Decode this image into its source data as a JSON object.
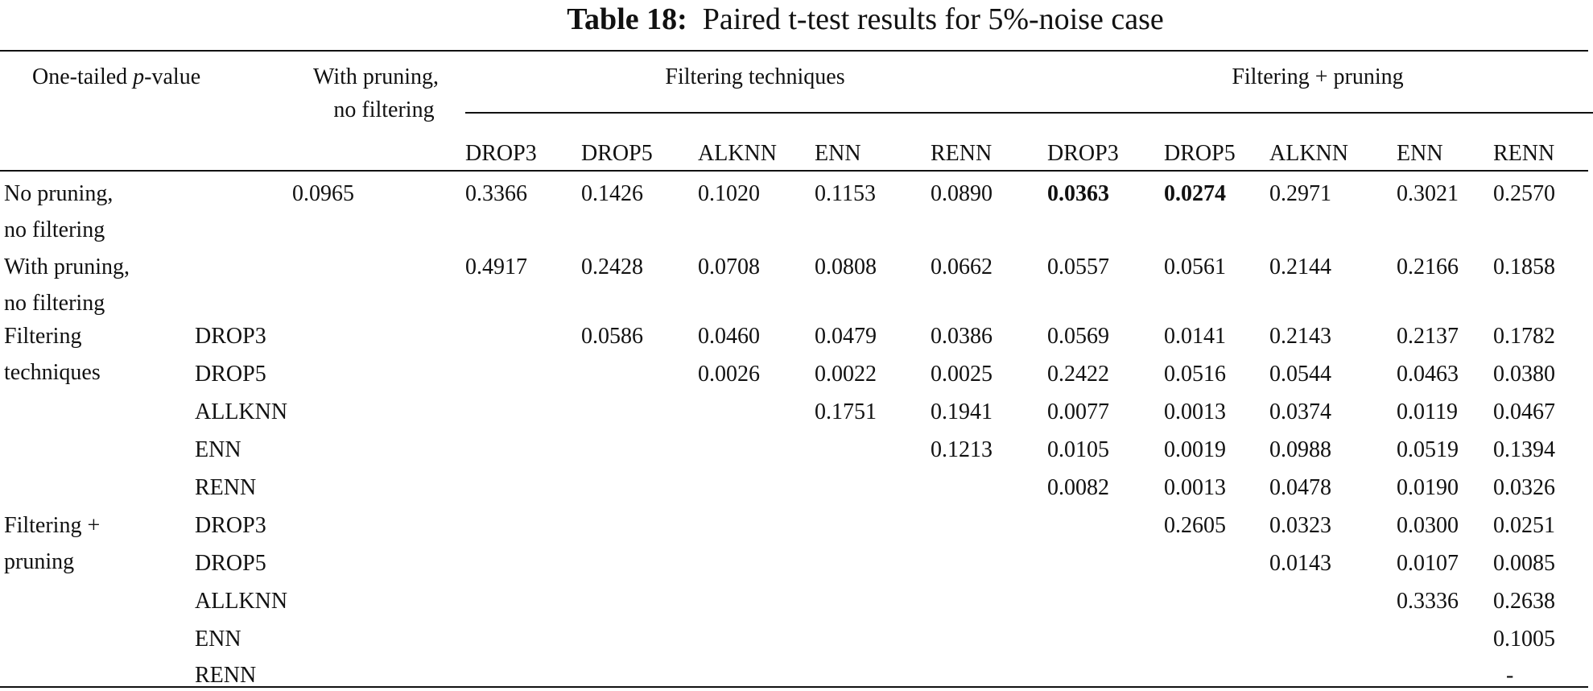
{
  "title": {
    "label": "Table 18:",
    "text": "Paired t-test results for 5%-noise case"
  },
  "header": {
    "corner": {
      "pre": "One-tailed ",
      "p": "p",
      "post": "-value"
    },
    "with_pruning": [
      "With pruning,",
      "no filtering"
    ],
    "group_filtering": "Filtering techniques",
    "group_filtering_pruning": "Filtering + pruning",
    "filtering_columns": [
      "DROP3",
      "DROP5",
      "ALKNN",
      "ENN",
      "RENN"
    ],
    "filtering_pruning_columns": [
      "DROP3",
      "DROP5",
      "ALKNN",
      "ENN",
      "RENN"
    ]
  },
  "rows": [
    {
      "label": [
        "No pruning,",
        "no filtering"
      ],
      "sub": "",
      "with_pruning": "0.0965",
      "values": [
        "0.3366",
        "0.1426",
        "0.1020",
        "0.1153",
        "0.0890",
        "0.0363",
        "0.0274",
        "0.2971",
        "0.3021",
        "0.2570"
      ],
      "bold": [
        5,
        6
      ]
    },
    {
      "label": [
        "With pruning,",
        "no filtering"
      ],
      "sub": "",
      "with_pruning": "",
      "values": [
        "0.4917",
        "0.2428",
        "0.0708",
        "0.0808",
        "0.0662",
        "0.0557",
        "0.0561",
        "0.2144",
        "0.2166",
        "0.1858"
      ],
      "bold": []
    },
    {
      "label": [
        "Filtering",
        "techniques"
      ],
      "sub": "DROP3",
      "with_pruning": "",
      "values": [
        "",
        "0.0586",
        "0.0460",
        "0.0479",
        "0.0386",
        "0.0569",
        "0.0141",
        "0.2143",
        "0.2137",
        "0.1782"
      ],
      "bold": []
    },
    {
      "label": [],
      "sub": "DROP5",
      "with_pruning": "",
      "values": [
        "",
        "",
        "0.0026",
        "0.0022",
        "0.0025",
        "0.2422",
        "0.0516",
        "0.0544",
        "0.0463",
        "0.0380"
      ],
      "bold": []
    },
    {
      "label": [],
      "sub": "ALLKNN",
      "with_pruning": "",
      "values": [
        "",
        "",
        "",
        "0.1751",
        "0.1941",
        "0.0077",
        "0.0013",
        "0.0374",
        "0.0119",
        "0.0467"
      ],
      "bold": []
    },
    {
      "label": [],
      "sub": "ENN",
      "with_pruning": "",
      "values": [
        "",
        "",
        "",
        "",
        "0.1213",
        "0.0105",
        "0.0019",
        "0.0988",
        "0.0519",
        "0.1394"
      ],
      "bold": []
    },
    {
      "label": [],
      "sub": "RENN",
      "with_pruning": "",
      "values": [
        "",
        "",
        "",
        "",
        "",
        "0.0082",
        "0.0013",
        "0.0478",
        "0.0190",
        "0.0326"
      ],
      "bold": []
    },
    {
      "label": [
        "Filtering +",
        "pruning"
      ],
      "sub": "DROP3",
      "with_pruning": "",
      "values": [
        "",
        "",
        "",
        "",
        "",
        "",
        "0.2605",
        "0.0323",
        "0.0300",
        "0.0251"
      ],
      "bold": []
    },
    {
      "label": [],
      "sub": "DROP5",
      "with_pruning": "",
      "values": [
        "",
        "",
        "",
        "",
        "",
        "",
        "",
        "0.0143",
        "0.0107",
        "0.0085"
      ],
      "bold": []
    },
    {
      "label": [],
      "sub": "ALLKNN",
      "with_pruning": "",
      "values": [
        "",
        "",
        "",
        "",
        "",
        "",
        "",
        "",
        "0.3336",
        "0.2638"
      ],
      "bold": []
    },
    {
      "label": [],
      "sub": "ENN",
      "with_pruning": "",
      "values": [
        "",
        "",
        "",
        "",
        "",
        "",
        "",
        "",
        "",
        "0.1005"
      ],
      "bold": []
    },
    {
      "label": [],
      "sub": "RENN",
      "with_pruning": "",
      "values": [
        "",
        "",
        "",
        "",
        "",
        "",
        "",
        "",
        "",
        "-"
      ],
      "bold": []
    }
  ]
}
